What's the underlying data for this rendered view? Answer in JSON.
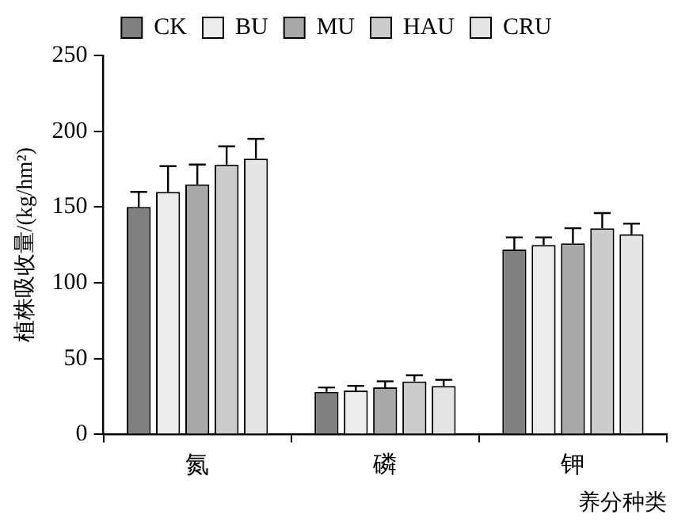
{
  "chart_data": {
    "type": "bar",
    "xlabel": "养分种类",
    "ylabel": "植株吸收量/(kg/hm²)",
    "categories": [
      "氮",
      "磷",
      "钾"
    ],
    "series": [
      {
        "name": "CK",
        "color": "#808080",
        "values": [
          150,
          28,
          122
        ],
        "errors": [
          [
            150,
            160
          ],
          [
            28,
            31
          ],
          [
            122,
            130
          ]
        ]
      },
      {
        "name": "BU",
        "color": "#ececec",
        "values": [
          160,
          29,
          125
        ],
        "errors": [
          [
            160,
            177
          ],
          [
            29,
            32
          ],
          [
            125,
            130
          ]
        ]
      },
      {
        "name": "MU",
        "color": "#a8a8a8",
        "values": [
          165,
          31,
          126
        ],
        "errors": [
          [
            165,
            178
          ],
          [
            31,
            35
          ],
          [
            126,
            136
          ]
        ]
      },
      {
        "name": "HAU",
        "color": "#cccccc",
        "values": [
          178,
          35,
          136
        ],
        "errors": [
          [
            178,
            190
          ],
          [
            35,
            39
          ],
          [
            136,
            146
          ]
        ]
      },
      {
        "name": "CRU",
        "color": "#e4e4e4",
        "values": [
          182,
          32,
          132
        ],
        "errors": [
          [
            182,
            195
          ],
          [
            32,
            36
          ],
          [
            132,
            139
          ]
        ]
      }
    ],
    "ylim": [
      0,
      250
    ],
    "yticks": [
      0,
      50,
      100,
      150,
      200,
      250
    ],
    "grid": false,
    "legend": "top"
  }
}
